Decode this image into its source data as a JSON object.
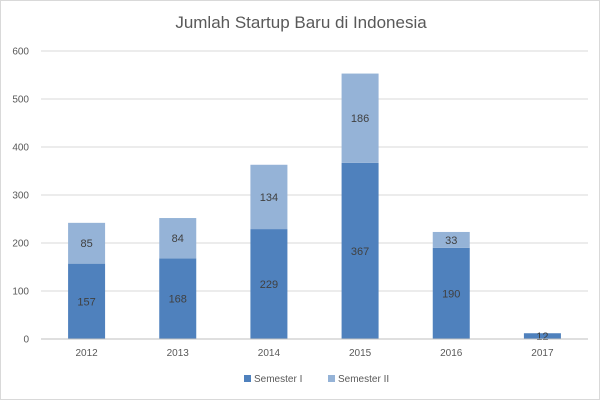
{
  "chart_data": {
    "type": "bar",
    "stacked": true,
    "title": "Jumlah Startup Baru di Indonesia",
    "xlabel": "",
    "ylabel": "",
    "categories": [
      "2012",
      "2013",
      "2014",
      "2015",
      "2016",
      "2017"
    ],
    "series": [
      {
        "name": "Semester I",
        "values": [
          157,
          168,
          229,
          367,
          190,
          12
        ],
        "color": "#4f81bd"
      },
      {
        "name": "Semester II",
        "values": [
          85,
          84,
          134,
          186,
          33,
          null
        ],
        "color": "#95b3d7"
      }
    ],
    "data_labels": {
      "Semester I": [
        "157",
        "168",
        "229",
        "367",
        "190",
        "12"
      ],
      "Semester II": [
        "85",
        "84",
        "134",
        "186",
        "33",
        ""
      ]
    },
    "ylim": [
      0,
      600
    ],
    "yticks": [
      "0",
      "100",
      "200",
      "300",
      "400",
      "500",
      "600"
    ],
    "grid": true,
    "legend_position": "bottom"
  }
}
